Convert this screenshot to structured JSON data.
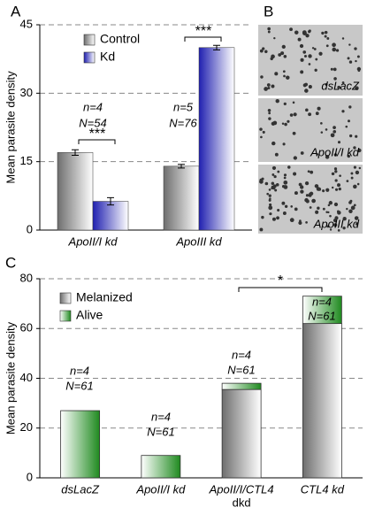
{
  "panels": [
    "A",
    "B",
    "C"
  ],
  "images": [
    "dsLacZ",
    "ApoII/I kd",
    "ApoIII kd"
  ],
  "chart_data": [
    {
      "type": "bar",
      "ylabel": "Mean parasite density",
      "categories": [
        "ApoII/I kd",
        "ApoIII kd"
      ],
      "series": [
        {
          "name": "Control",
          "color": "#6e6e6e",
          "values": [
            17,
            14
          ],
          "errors": [
            0.6,
            0.4
          ]
        },
        {
          "name": "Kd",
          "color": "#2020b0",
          "values": [
            6.3,
            40
          ],
          "errors": [
            0.8,
            0.5
          ]
        }
      ],
      "ylim": [
        0,
        45
      ],
      "yticks": [
        0,
        15,
        30,
        45
      ],
      "grid": true,
      "legend": "top-left",
      "annotations": [
        "n=4",
        "N=54",
        "***",
        "n=5",
        "N=76",
        "***"
      ]
    },
    {
      "type": "stacked-bar",
      "ylabel": "Mean parasite density",
      "categories": [
        [
          "dsLacZ"
        ],
        [
          "ApoII/I kd"
        ],
        [
          "ApoII/I/CTL4",
          "dkd"
        ],
        [
          "CTL4 kd"
        ]
      ],
      "series": [
        {
          "name": "Melanized",
          "color": "#6e6e6e",
          "values": [
            0,
            0,
            35.5,
            62
          ]
        },
        {
          "name": "Alive",
          "color": "#1f8a1f",
          "values": [
            27,
            9,
            2.5,
            11
          ]
        }
      ],
      "ylim": [
        0,
        80
      ],
      "yticks": [
        0,
        20,
        40,
        60,
        80
      ],
      "grid": true,
      "legend": "top-left",
      "annotations": [
        "n=4",
        "N=61",
        "n=4",
        "N=61",
        "n=4",
        "N=61",
        "n=4",
        "N=61",
        "*"
      ]
    }
  ]
}
